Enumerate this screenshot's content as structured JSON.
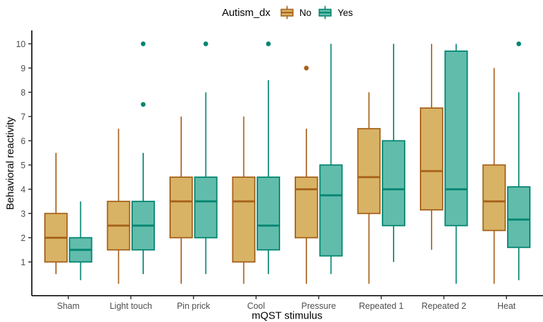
{
  "chart_data": {
    "type": "boxplot",
    "title": "",
    "xlabel": "mQST stimulus",
    "ylabel": "Behavioral reactivity",
    "legend_title": "Autism_dx",
    "legend_position": "top",
    "ylim": [
      -0.5,
      10.5
    ],
    "yticks": [
      1,
      2,
      3,
      4,
      5,
      6,
      7,
      8,
      9,
      10
    ],
    "grid": "off",
    "categories": [
      "Sham",
      "Light touch",
      "Pin prick",
      "Cool",
      "Pressure",
      "Repeated 1",
      "Repeated 2",
      "Heat"
    ],
    "series": [
      {
        "name": "No",
        "fill": "#d8b365",
        "stroke": "#a6611a",
        "boxes": [
          {
            "whisker_low": 0.5,
            "q1": 1.0,
            "median": 2.0,
            "q3": 3.0,
            "whisker_high": 5.5,
            "outliers": []
          },
          {
            "whisker_low": 0.1,
            "q1": 1.5,
            "median": 2.5,
            "q3": 3.5,
            "whisker_high": 6.5,
            "outliers": []
          },
          {
            "whisker_low": 0.1,
            "q1": 2.0,
            "median": 3.5,
            "q3": 4.5,
            "whisker_high": 7.0,
            "outliers": []
          },
          {
            "whisker_low": 0.1,
            "q1": 1.0,
            "median": 3.5,
            "q3": 4.5,
            "whisker_high": 7.0,
            "outliers": []
          },
          {
            "whisker_low": 0.1,
            "q1": 2.0,
            "median": 4.0,
            "q3": 4.5,
            "whisker_high": 6.5,
            "outliers": [
              9.0
            ]
          },
          {
            "whisker_low": 0.1,
            "q1": 3.0,
            "median": 4.5,
            "q3": 6.5,
            "whisker_high": 8.0,
            "outliers": []
          },
          {
            "whisker_low": 1.5,
            "q1": 3.15,
            "median": 4.75,
            "q3": 7.35,
            "whisker_high": 10.0,
            "outliers": []
          },
          {
            "whisker_low": 0.1,
            "q1": 2.3,
            "median": 3.5,
            "q3": 5.0,
            "whisker_high": 9.0,
            "outliers": []
          }
        ]
      },
      {
        "name": "Yes",
        "fill": "#62bcab",
        "stroke": "#018571",
        "boxes": [
          {
            "whisker_low": 0.25,
            "q1": 1.0,
            "median": 1.5,
            "q3": 2.0,
            "whisker_high": 3.5,
            "outliers": []
          },
          {
            "whisker_low": 0.5,
            "q1": 1.5,
            "median": 2.5,
            "q3": 3.5,
            "whisker_high": 5.5,
            "outliers": [
              7.5,
              10.0
            ]
          },
          {
            "whisker_low": 0.5,
            "q1": 2.0,
            "median": 3.5,
            "q3": 4.5,
            "whisker_high": 8.0,
            "outliers": [
              10.0
            ]
          },
          {
            "whisker_low": 0.5,
            "q1": 1.5,
            "median": 2.5,
            "q3": 4.5,
            "whisker_high": 8.5,
            "outliers": [
              10.0
            ]
          },
          {
            "whisker_low": 0.5,
            "q1": 1.25,
            "median": 3.75,
            "q3": 5.0,
            "whisker_high": 10.0,
            "outliers": []
          },
          {
            "whisker_low": 1.0,
            "q1": 2.5,
            "median": 4.0,
            "q3": 6.0,
            "whisker_high": 10.0,
            "outliers": []
          },
          {
            "whisker_low": 0.1,
            "q1": 2.5,
            "median": 4.0,
            "q3": 9.7,
            "whisker_high": 10.0,
            "outliers": []
          },
          {
            "whisker_low": 0.25,
            "q1": 1.6,
            "median": 2.75,
            "q3": 4.1,
            "whisker_high": 8.0,
            "outliers": [
              10.0
            ]
          }
        ]
      }
    ]
  }
}
